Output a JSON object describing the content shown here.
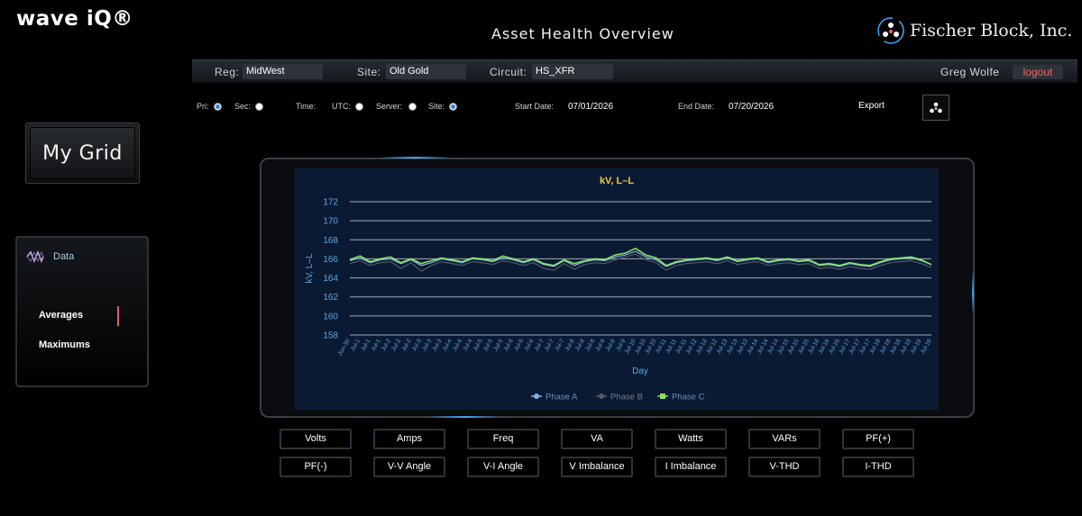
{
  "app": {
    "logo_text": "wave iQ®",
    "page_title": "Asset Health Overview",
    "brand_name": "Fischer Block, Inc.",
    "brand_icon": "fischer-block-logo-icon"
  },
  "filters": {
    "reg_label": "Reg:",
    "reg_value": "MidWest",
    "site_label": "Site:",
    "site_value": "Old Gold",
    "circuit_label": "Circuit:",
    "circuit_value": "HS_XFR",
    "user_name": "Greg Wolfe",
    "logout_label": "logout"
  },
  "options": {
    "pri_label": "Pri:",
    "pri_checked": true,
    "sec_label": "Sec:",
    "sec_checked": false,
    "time_label": "Time:",
    "utc_label": "UTC:",
    "utc_checked": false,
    "server_label": "Server:",
    "server_checked": false,
    "site_label": "Site:",
    "site_checked": true,
    "start_label": "Start Date:",
    "start_value": "07/01/2026",
    "end_label": "End Date:",
    "end_value": "07/20/2026",
    "export_label": "Export"
  },
  "sidebar": {
    "mygrid_label": "My Grid",
    "data_title": "Data",
    "items": [
      {
        "label": "Averages",
        "active": true
      },
      {
        "label": "Maximums",
        "active": false
      }
    ]
  },
  "colors": {
    "accent": "#3aa8ff",
    "plot_bg": "#0b1a33",
    "title": "#f5c542",
    "phase_a": "#7fb3e6",
    "phase_b": "#555a60",
    "phase_c": "#88e060",
    "logout": "#e26a6a"
  },
  "chart_data": {
    "type": "line",
    "title": "kV, L–L",
    "xlabel": "Day",
    "ylabel": "kV, L–L",
    "ylim": [
      158,
      172
    ],
    "yticks": [
      172,
      170,
      168,
      166,
      164,
      162,
      160,
      158
    ],
    "grid": true,
    "legend": "bottom",
    "x": [
      "Jun-30",
      "Jul-1",
      "Jul-1",
      "Jul-1",
      "Jul-2",
      "Jul-2",
      "Jul-2",
      "Jul-3",
      "Jul-3",
      "Jul-3",
      "Jul-4",
      "Jul-4",
      "Jul-4",
      "Jul-5",
      "Jul-5",
      "Jul-5",
      "Jul-6",
      "Jul-6",
      "Jul-6",
      "Jul-7",
      "Jul-7",
      "Jul-7",
      "Jul-8",
      "Jul-8",
      "Jul-8",
      "Jul-9",
      "Jul-9",
      "Jul-9",
      "Jul-10",
      "Jul-10",
      "Jul-10",
      "Jul-11",
      "Jul-11",
      "Jul-11",
      "Jul-12",
      "Jul-12",
      "Jul-12",
      "Jul-13",
      "Jul-13",
      "Jul-13",
      "Jul-14",
      "Jul-14",
      "Jul-14",
      "Jul-15",
      "Jul-15",
      "Jul-15",
      "Jul-16",
      "Jul-16",
      "Jul-16",
      "Jul-17",
      "Jul-17",
      "Jul-17",
      "Jul-18",
      "Jul-18",
      "Jul-18",
      "Jul-19",
      "Jul-19",
      "Jul-19"
    ],
    "series": [
      {
        "name": "Phase A",
        "values": [
          165.8,
          166.1,
          165.6,
          165.9,
          166.0,
          165.5,
          165.9,
          165.3,
          165.6,
          166.0,
          165.8,
          165.6,
          166.0,
          165.9,
          165.7,
          166.1,
          165.9,
          165.6,
          165.9,
          165.4,
          165.2,
          165.8,
          165.3,
          165.7,
          165.9,
          165.8,
          166.2,
          166.4,
          166.8,
          166.2,
          165.9,
          165.2,
          165.6,
          165.8,
          165.9,
          166.0,
          165.8,
          166.1,
          165.7,
          165.9,
          166.0,
          165.6,
          165.8,
          165.9,
          165.7,
          165.8,
          165.3,
          165.4,
          165.2,
          165.5,
          165.3,
          165.2,
          165.6,
          165.9,
          166.0,
          166.1,
          165.8,
          165.4
        ]
      },
      {
        "name": "Phase B",
        "values": [
          165.5,
          165.8,
          165.3,
          165.6,
          165.7,
          165.0,
          165.6,
          164.7,
          165.3,
          165.7,
          165.5,
          165.3,
          165.7,
          165.6,
          165.4,
          165.8,
          165.6,
          165.3,
          165.6,
          165.0,
          164.8,
          165.5,
          164.9,
          165.4,
          165.6,
          165.5,
          165.9,
          166.2,
          166.5,
          165.9,
          165.6,
          164.8,
          165.3,
          165.5,
          165.6,
          165.7,
          165.5,
          165.8,
          165.4,
          165.6,
          165.7,
          165.3,
          165.5,
          165.6,
          165.4,
          165.5,
          165.0,
          165.1,
          164.9,
          165.2,
          165.0,
          164.9,
          165.3,
          165.6,
          165.7,
          165.8,
          165.5,
          165.1
        ]
      },
      {
        "name": "Phase C",
        "values": [
          165.9,
          166.3,
          165.7,
          166.0,
          166.2,
          165.6,
          166.0,
          165.5,
          165.8,
          166.1,
          165.9,
          165.7,
          166.1,
          166.0,
          165.8,
          166.3,
          166.0,
          165.7,
          166.0,
          165.5,
          165.3,
          165.9,
          165.5,
          165.8,
          166.0,
          165.9,
          166.4,
          166.6,
          167.1,
          166.4,
          166.1,
          165.3,
          165.7,
          165.9,
          166.0,
          166.1,
          165.9,
          166.2,
          165.8,
          166.0,
          166.1,
          165.7,
          165.9,
          166.0,
          165.8,
          165.9,
          165.4,
          165.5,
          165.3,
          165.6,
          165.4,
          165.3,
          165.7,
          166.0,
          166.1,
          166.2,
          165.9,
          165.4
        ]
      }
    ]
  },
  "metric_buttons": [
    "Volts",
    "Amps",
    "Freq",
    "VA",
    "Watts",
    "VARs",
    "PF(+)",
    "PF(-)",
    "V-V Angle",
    "V-I Angle",
    "V Imbalance",
    "I Imbalance",
    "V-THD",
    "I-THD"
  ]
}
